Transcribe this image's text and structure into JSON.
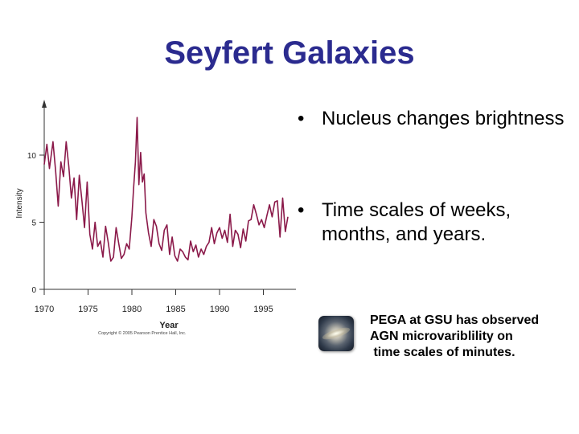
{
  "slide": {
    "title": "Seyfert Galaxies",
    "bullets": [
      {
        "marker": "•",
        "text": "Nucleus changes brightness"
      },
      {
        "marker": "•",
        "text": "Time scales of weeks, months, and years."
      }
    ],
    "note_lines": [
      "PEGA at GSU has observed",
      "AGN microvariblility on",
      " time scales of minutes."
    ],
    "image_icon": "galaxy-photo"
  },
  "chart_data": {
    "type": "line",
    "title": "",
    "xlabel": "Year",
    "ylabel": "Intensity",
    "xlim": [
      1970,
      1998
    ],
    "ylim": [
      0,
      13.5
    ],
    "xticks": [
      1970,
      1975,
      1980,
      1985,
      1990,
      1995
    ],
    "yticks": [
      0,
      5,
      10
    ],
    "grid": false,
    "line_color": "#8b1a4a",
    "credit": "Copyright © 2005 Pearson Prentice Hall, Inc.",
    "series": [
      {
        "x": [
          1970.0,
          1970.3,
          1970.6,
          1971.0,
          1971.3,
          1971.6,
          1971.9,
          1972.2,
          1972.5,
          1972.8,
          1973.1,
          1973.4,
          1973.7,
          1974.0,
          1974.3,
          1974.6,
          1974.9,
          1975.2,
          1975.5,
          1975.8,
          1976.1,
          1976.4,
          1976.7,
          1977.0,
          1977.3,
          1977.6,
          1977.9,
          1978.2,
          1978.5,
          1978.8,
          1979.1,
          1979.4,
          1979.7,
          1980.0,
          1980.2,
          1980.4,
          1980.6,
          1980.8,
          1981.0,
          1981.2,
          1981.4,
          1981.6,
          1981.9,
          1982.2,
          1982.5,
          1982.8,
          1983.1,
          1983.4,
          1983.7,
          1984.0,
          1984.3,
          1984.6,
          1984.9,
          1985.2,
          1985.5,
          1985.8,
          1986.1,
          1986.4,
          1986.7,
          1987.0,
          1987.3,
          1987.6,
          1987.9,
          1988.2,
          1988.5,
          1988.8,
          1989.1,
          1989.4,
          1989.7,
          1990.0,
          1990.3,
          1990.6,
          1990.9,
          1991.2,
          1991.5,
          1991.8,
          1992.1,
          1992.4,
          1992.7,
          1993.0,
          1993.3,
          1993.6,
          1993.9,
          1994.2,
          1994.5,
          1994.8,
          1995.1,
          1995.4,
          1995.7,
          1996.0,
          1996.3,
          1996.6,
          1996.9,
          1997.2,
          1997.5,
          1997.8
        ],
        "y": [
          9.3,
          10.8,
          9.0,
          11.0,
          8.8,
          6.2,
          9.5,
          8.4,
          11.0,
          9.2,
          6.8,
          8.3,
          5.2,
          8.5,
          6.6,
          4.6,
          8.0,
          4.1,
          3.0,
          5.0,
          3.2,
          3.6,
          2.4,
          4.7,
          3.5,
          2.1,
          2.4,
          4.6,
          3.4,
          2.3,
          2.6,
          3.4,
          3.0,
          5.4,
          7.6,
          9.5,
          12.8,
          7.8,
          10.2,
          8.0,
          8.6,
          5.7,
          4.2,
          3.2,
          5.2,
          4.7,
          3.4,
          2.9,
          4.4,
          4.8,
          2.6,
          3.9,
          2.5,
          2.1,
          3.0,
          2.8,
          2.4,
          2.2,
          3.6,
          2.8,
          3.3,
          2.4,
          3.0,
          2.6,
          3.2,
          3.5,
          4.6,
          3.4,
          4.2,
          4.6,
          3.8,
          4.4,
          3.5,
          5.6,
          3.2,
          4.4,
          4.1,
          3.1,
          4.5,
          3.6,
          5.1,
          5.2,
          6.3,
          5.6,
          4.8,
          5.2,
          4.6,
          5.5,
          6.3,
          5.4,
          6.5,
          6.6,
          3.9,
          6.8,
          4.3,
          5.4
        ]
      }
    ]
  }
}
